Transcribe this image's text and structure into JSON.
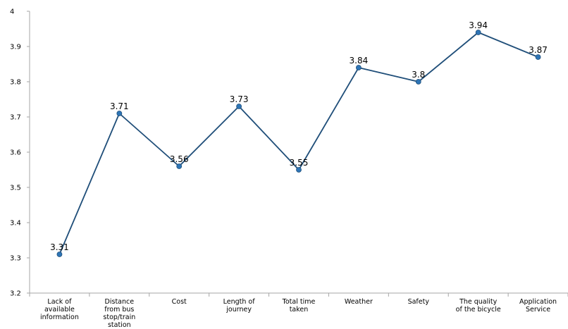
{
  "chart_data": {
    "type": "line",
    "categories": [
      "Lack of available information",
      "Distance from bus stop/train station",
      "Cost",
      "Length of journey",
      "Total time taken",
      "Weather",
      "Safety",
      "The quality of the bicycle",
      "Application Service"
    ],
    "category_lines": [
      [
        "Lack of",
        "available",
        "information"
      ],
      [
        "Distance",
        "from bus",
        "stop/train",
        "station"
      ],
      [
        "Cost"
      ],
      [
        "Length of",
        "journey"
      ],
      [
        "Total time",
        "taken"
      ],
      [
        "Weather"
      ],
      [
        "Safety"
      ],
      [
        "The quality",
        "of the bicycle"
      ],
      [
        "Application",
        "Service"
      ]
    ],
    "values": [
      3.31,
      3.71,
      3.56,
      3.73,
      3.55,
      3.84,
      3.8,
      3.94,
      3.87
    ],
    "data_labels": [
      "3.31",
      "3.71",
      "3.56",
      "3.73",
      "3.55",
      "3.84",
      "3.8",
      "3.94",
      "3.87"
    ],
    "y_ticks": [
      "3.2",
      "3.3",
      "3.4",
      "3.5",
      "3.6",
      "3.7",
      "3.8",
      "3.9",
      "4"
    ],
    "ylim": [
      3.2,
      4.0
    ],
    "title": "",
    "xlabel": "",
    "ylabel": "",
    "grid": false,
    "legend": "none",
    "colors": {
      "line": "#1f4e79",
      "marker": "#2e75b6",
      "axis": "#a6a6a6",
      "text": "#000000"
    }
  }
}
